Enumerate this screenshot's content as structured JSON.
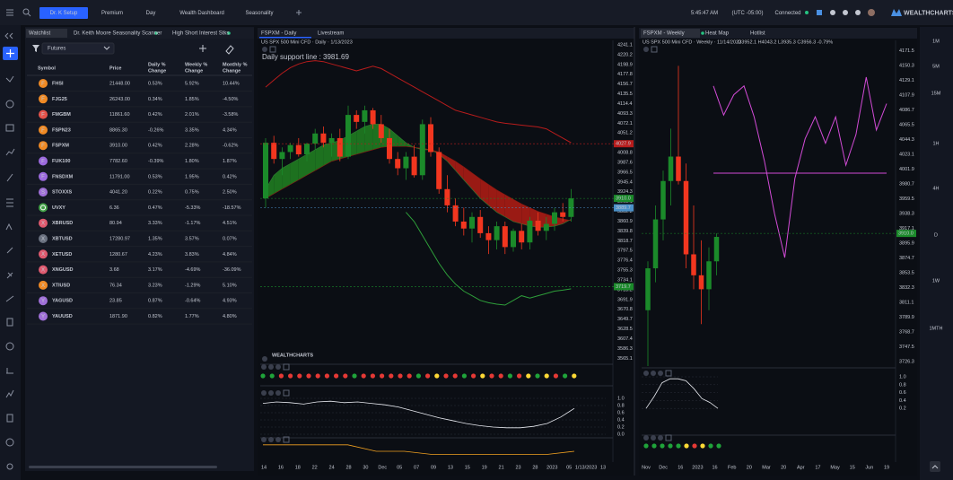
{
  "topbar": {
    "tabs": [
      "Dr. K Setup",
      "Premium",
      "Day",
      "Wealth Dashboard",
      "Seasonality"
    ],
    "time": "5:45:47 AM",
    "timezone": "(UTC -05:00)",
    "status": "Connected",
    "brand": "WEALTHCHARTS"
  },
  "watchlist": {
    "tabs": [
      "Watchlist",
      "Dr. Keith Moore Seasonality Scanner",
      "High Short Interest Stks"
    ],
    "filter": "Futures",
    "columns": [
      [
        "Symbol"
      ],
      [
        "Price"
      ],
      [
        "Daily %",
        "Change"
      ],
      [
        "Weekly %",
        "Change"
      ],
      [
        "Monthly %",
        "Change"
      ]
    ],
    "rows": [
      {
        "icon": "F",
        "icon_color": "#f08a24",
        "symbol": "FHSI",
        "price": "21448.00",
        "daily": "0.53%",
        "weekly": "5.92%",
        "monthly": "10.44%"
      },
      {
        "icon": "F",
        "icon_color": "#f08a24",
        "symbol": "FJG25",
        "price": "26243.00",
        "daily": "0.34%",
        "weekly": "1.85%",
        "monthly": "-4.50%"
      },
      {
        "icon": "F",
        "icon_color": "#e5534b",
        "symbol": "FMGBM",
        "price": "11861.60",
        "daily": "0.42%",
        "weekly": "2.01%",
        "monthly": "-3.58%"
      },
      {
        "icon": "F",
        "icon_color": "#f08a24",
        "symbol": "FSPN23",
        "price": "8865.30",
        "daily": "-0.26%",
        "weekly": "3.35%",
        "monthly": "4.34%"
      },
      {
        "icon": "F",
        "icon_color": "#f08a24",
        "symbol": "FSPXM",
        "price": "3910.00",
        "daily": "0.42%",
        "weekly": "2.28%",
        "monthly": "-0.62%"
      },
      {
        "icon": "F",
        "icon_color": "#9c6ade",
        "symbol": "FUK100",
        "price": "7782.60",
        "daily": "-0.39%",
        "weekly": "1.80%",
        "monthly": "1.87%"
      },
      {
        "icon": "F",
        "icon_color": "#9c6ade",
        "symbol": "FNSDXM",
        "price": "11791.00",
        "daily": "0.53%",
        "weekly": "1.95%",
        "monthly": "0.42%"
      },
      {
        "icon": "S",
        "icon_color": "#a070d8",
        "symbol": "STOXXS",
        "price": "4041.20",
        "daily": "0.22%",
        "weekly": "0.75%",
        "monthly": "2.50%"
      },
      {
        "icon_color": "#43a047",
        "symbol": "UVXY",
        "price": "6.36",
        "daily": "0.47%",
        "weekly": "-5.33%",
        "monthly": "-18.57%"
      },
      {
        "icon": "X",
        "icon_color": "#e05a6f",
        "symbol": "XBRUSD",
        "price": "80.94",
        "daily": "3.33%",
        "weekly": "-1.17%",
        "monthly": "4.51%"
      },
      {
        "icon": "X",
        "icon_color": "#6b7280",
        "symbol": "XBTUSD",
        "price": "17280.97",
        "daily": "1.35%",
        "weekly": "3.57%",
        "monthly": "0.07%"
      },
      {
        "icon": "X",
        "icon_color": "#e05a6f",
        "symbol": "XETUSD",
        "price": "1280.67",
        "daily": "4.23%",
        "weekly": "3.83%",
        "monthly": "4.84%"
      },
      {
        "icon": "X",
        "icon_color": "#e05a6f",
        "symbol": "XNGUSD",
        "price": "3.68",
        "daily": "3.17%",
        "weekly": "-4.69%",
        "monthly": "-36.09%"
      },
      {
        "icon": "X",
        "icon_color": "#f08a24",
        "symbol": "XTIUSD",
        "price": "76.34",
        "daily": "3.23%",
        "weekly": "-1.29%",
        "monthly": "5.10%"
      },
      {
        "icon": "Y",
        "icon_color": "#a070d8",
        "symbol": "YAGUSD",
        "price": "23.85",
        "daily": "0.87%",
        "weekly": "-0.64%",
        "monthly": "4.93%"
      },
      {
        "icon": "Y",
        "icon_color": "#a070d8",
        "symbol": "YAUUSD",
        "price": "1871.90",
        "daily": "0.82%",
        "weekly": "1.77%",
        "monthly": "4.80%"
      }
    ]
  },
  "daily": {
    "tab": "FSPXM - Daily",
    "tab2": "Livestream",
    "subtitle": "US SPX 500 Mini CFD · Daily · 1/13/2023",
    "annotation": "Daily support line : 3981.69",
    "watermark": "WEALTHCHARTS",
    "ylim": [
      3560,
      4245
    ],
    "yticks": [
      4241.1,
      4220.2,
      4198.9,
      4177.8,
      4156.7,
      4135.5,
      4114.4,
      4093.3,
      4072.1,
      4051.2,
      4029.9,
      4008.8,
      3987.6,
      3966.5,
      3945.4,
      3924.3,
      3903.1,
      3882.2,
      3860.9,
      3839.8,
      3818.7,
      3797.5,
      3776.4,
      3755.3,
      3734.1,
      3713.2,
      3691.9,
      3670.8,
      3649.7,
      3628.5,
      3607.4,
      3586.3,
      3565.1
    ],
    "candles": [
      [
        3910,
        4040,
        3890,
        4030
      ],
      [
        4030,
        4045,
        3985,
        3995
      ],
      [
        3995,
        4020,
        3960,
        4010
      ],
      [
        4010,
        4030,
        3995,
        4025
      ],
      [
        4025,
        4040,
        4000,
        4005
      ],
      [
        4005,
        4030,
        3990,
        4028
      ],
      [
        4028,
        4060,
        4015,
        4050
      ],
      [
        4050,
        4065,
        4020,
        4030
      ],
      [
        4030,
        4050,
        4000,
        4040
      ],
      [
        4040,
        4060,
        3990,
        4000
      ],
      [
        4000,
        4110,
        3995,
        4090
      ],
      [
        4090,
        4100,
        4060,
        4075
      ],
      [
        4075,
        4110,
        4050,
        4100
      ],
      [
        4100,
        4105,
        4060,
        4070
      ],
      [
        4070,
        4090,
        4030,
        4040
      ],
      [
        4040,
        4060,
        3985,
        3995
      ],
      [
        3995,
        4010,
        3960,
        3975
      ],
      [
        3975,
        4010,
        3950,
        4000
      ],
      [
        4000,
        4025,
        3955,
        3960
      ],
      [
        3960,
        4080,
        3950,
        4070
      ],
      [
        4070,
        4085,
        4000,
        4010
      ],
      [
        4010,
        4020,
        3920,
        3930
      ],
      [
        3930,
        3960,
        3880,
        3895
      ],
      [
        3895,
        3910,
        3850,
        3860
      ],
      [
        3860,
        3890,
        3830,
        3845
      ],
      [
        3845,
        3880,
        3815,
        3870
      ],
      [
        3870,
        3885,
        3825,
        3835
      ],
      [
        3835,
        3850,
        3790,
        3820
      ],
      [
        3820,
        3860,
        3800,
        3850
      ],
      [
        3850,
        3860,
        3790,
        3805
      ],
      [
        3805,
        3845,
        3795,
        3840
      ],
      [
        3840,
        3855,
        3800,
        3815
      ],
      [
        3815,
        3870,
        3800,
        3862
      ],
      [
        3862,
        3880,
        3830,
        3840
      ],
      [
        3840,
        3870,
        3820,
        3855
      ],
      [
        3855,
        3890,
        3840,
        3880
      ],
      [
        3880,
        3900,
        3860,
        3870
      ],
      [
        3870,
        3930,
        3860,
        3910
      ]
    ],
    "upper_band": [
      4150,
      4165,
      4180,
      4192,
      4200,
      4205,
      4207,
      4205,
      4200,
      4195,
      4190,
      4185,
      4190,
      4195,
      4190,
      4180,
      4170,
      4160,
      4150,
      4140,
      4130,
      4120,
      4110,
      4100,
      4095,
      4090,
      4085,
      4080,
      4075,
      4072,
      4070,
      4068,
      4066,
      4064,
      4060,
      4050,
      4040,
      4030
    ],
    "lower_band": [
      null,
      null,
      null,
      null,
      null,
      null,
      null,
      null,
      null,
      null,
      null,
      null,
      null,
      null,
      null,
      null,
      null,
      3880,
      3860,
      3830,
      3800,
      3770,
      3745,
      3725,
      3710,
      3700,
      3690,
      3685,
      3682,
      3680,
      3690,
      3700,
      3695,
      3700,
      3705,
      3710,
      3712,
      3715
    ],
    "ma_fast": [
      3930,
      3960,
      3975,
      3985,
      3995,
      4005,
      4015,
      4025,
      4030,
      4035,
      4045,
      4055,
      4065,
      4070,
      4070,
      4060,
      4045,
      4030,
      4020,
      4015,
      4015,
      4005,
      3990,
      3970,
      3950,
      3930,
      3910,
      3895,
      3880,
      3870,
      3860,
      3855,
      3850,
      3848,
      3848,
      3850,
      3855,
      3865
    ],
    "ma_slow": [
      3910,
      3920,
      3930,
      3940,
      3950,
      3960,
      3970,
      3980,
      3990,
      3995,
      4000,
      4005,
      4010,
      4015,
      4020,
      4022,
      4022,
      4022,
      4020,
      4018,
      4015,
      4010,
      4000,
      3990,
      3978,
      3965,
      3952,
      3940,
      3928,
      3918,
      3908,
      3898,
      3890,
      3882,
      3876,
      3870,
      3866,
      3862
    ],
    "badges": [
      {
        "value": 4027.9,
        "color": "#b71c1c"
      },
      {
        "value": 3910,
        "label": "3910.0",
        "color": "#1b8a2a"
      },
      {
        "value": 3889.7,
        "color": "#4a90c8"
      },
      {
        "value": 3719.7,
        "color": "#1b8a2a"
      }
    ],
    "xlabels": [
      "14",
      "16",
      "18",
      "22",
      "24",
      "28",
      "30",
      "Dec",
      "05",
      "07",
      "09",
      "13",
      "15",
      "19",
      "21",
      "23",
      "28",
      "2023",
      "05",
      "1/13/2023",
      "13"
    ],
    "signal_dots": [
      "#1fa33a",
      "#1fa33a",
      "#e53935",
      "#e53935",
      "#e53935",
      "#e53935",
      "#e53935",
      "#e53935",
      "#e53935",
      "#e53935",
      "#1fa33a",
      "#e53935",
      "#e53935",
      "#e53935",
      "#e53935",
      "#e53935",
      "#e53935",
      "#1fa33a",
      "#e53935",
      "#fdd835",
      "#e53935",
      "#e53935",
      "#1fa33a",
      "#e53935",
      "#fdd835",
      "#e53935",
      "#e53935",
      "#1fa33a",
      "#e53935",
      "#fdd835",
      "#1fa33a",
      "#fdd835",
      "#e53935",
      "#1fa33a",
      "#fdd835"
    ],
    "osc": {
      "ylim": [
        0,
        1
      ],
      "yticks": [
        {
          "value": 1,
          "label": "1.0"
        },
        0.8,
        0.6,
        0.4,
        0.2,
        {
          "value": 0,
          "label": "0.0"
        }
      ],
      "values": [
        0.86,
        0.9,
        0.88,
        0.84,
        0.9,
        0.92,
        0.88,
        0.9,
        0.86,
        0.82,
        0.76,
        0.66,
        0.56,
        0.46,
        0.38,
        0.3,
        0.24,
        0.2,
        0.18,
        0.18,
        0.22,
        0.3,
        0.48,
        0.72
      ]
    },
    "osc2": {
      "ylim": [
        0,
        1
      ],
      "values": [
        0.9,
        0.9,
        0.9,
        0.9,
        0.5,
        0.5,
        0.3,
        0.3,
        0.3,
        0.3,
        0.3,
        0.5
      ]
    }
  },
  "weekly": {
    "tab": "FSPXM - Weekly",
    "tabs": [
      "Heat Map",
      "Hotlist"
    ],
    "subtitle": "US SPX 500 Mini CFD · Weekly · 11/14/2022",
    "ohlc": "O3952.1 H4043.2 L3935.3 C3956.3 -0.79%",
    "ylim": [
      3720,
      4180
    ],
    "yticks": [
      4171.5,
      4150.3,
      4129.1,
      4107.9,
      4086.7,
      4065.5,
      4044.3,
      4023.1,
      4001.9,
      3980.7,
      3959.5,
      3938.3,
      3917.1,
      3895.9,
      3874.7,
      3853.5,
      3832.3,
      3811.1,
      3789.9,
      3768.7,
      3747.5,
      3726.3
    ],
    "candles": [
      [
        3800,
        3870,
        3720,
        3860
      ],
      [
        3860,
        3950,
        3840,
        3930
      ],
      [
        3930,
        4000,
        3900,
        3985
      ],
      [
        3985,
        4060,
        3950,
        4020
      ],
      [
        4020,
        4150,
        3980,
        3985
      ],
      [
        3985,
        4010,
        3860,
        3880
      ],
      [
        3880,
        3950,
        3830,
        3850
      ],
      [
        3850,
        3900,
        3780,
        3830
      ],
      [
        3830,
        3890,
        3800,
        3870
      ],
      [
        3870,
        3910,
        3850,
        3905
      ]
    ],
    "seasonality": [
      4121.1,
      4079.5,
      4108.5,
      4121.1,
      4077,
      4014,
      3938.3,
      3875.3,
      3988.7,
      4045.5,
      4077,
      4039,
      4077,
      4007.7,
      4051.8,
      4133.7,
      4058,
      4095.9
    ],
    "seasonal_level": 3996.3,
    "badges": [
      {
        "value": 3910,
        "label": "3910.0",
        "color": "#1b8a2a"
      }
    ],
    "xlabels": [
      "Nov",
      "Dec",
      "16",
      "2023",
      "16",
      "Feb",
      "20",
      "Mar",
      "20",
      "Apr",
      "17",
      "May",
      "15",
      "Jun",
      "19"
    ],
    "signal_dots": [
      "#1fa33a",
      "#1fa33a",
      "#1fa33a",
      "#1fa33a",
      "#1fa33a",
      "#fdd835",
      "#e53935",
      "#fdd835",
      "#1fa33a",
      "#1fa33a"
    ],
    "osc": {
      "ylim": [
        0,
        1
      ],
      "yticks": [
        {
          "value": 1,
          "label": "1.0"
        },
        0.8,
        0.6,
        0.4,
        0.2
      ],
      "values": [
        0.2,
        0.5,
        0.85,
        0.95,
        0.95,
        0.9,
        0.7,
        0.45,
        0.35,
        0.2
      ]
    }
  },
  "timeframes": [
    "1M",
    "5M",
    "15M",
    "1H",
    "4H",
    "D",
    "1W",
    "1MTH"
  ]
}
